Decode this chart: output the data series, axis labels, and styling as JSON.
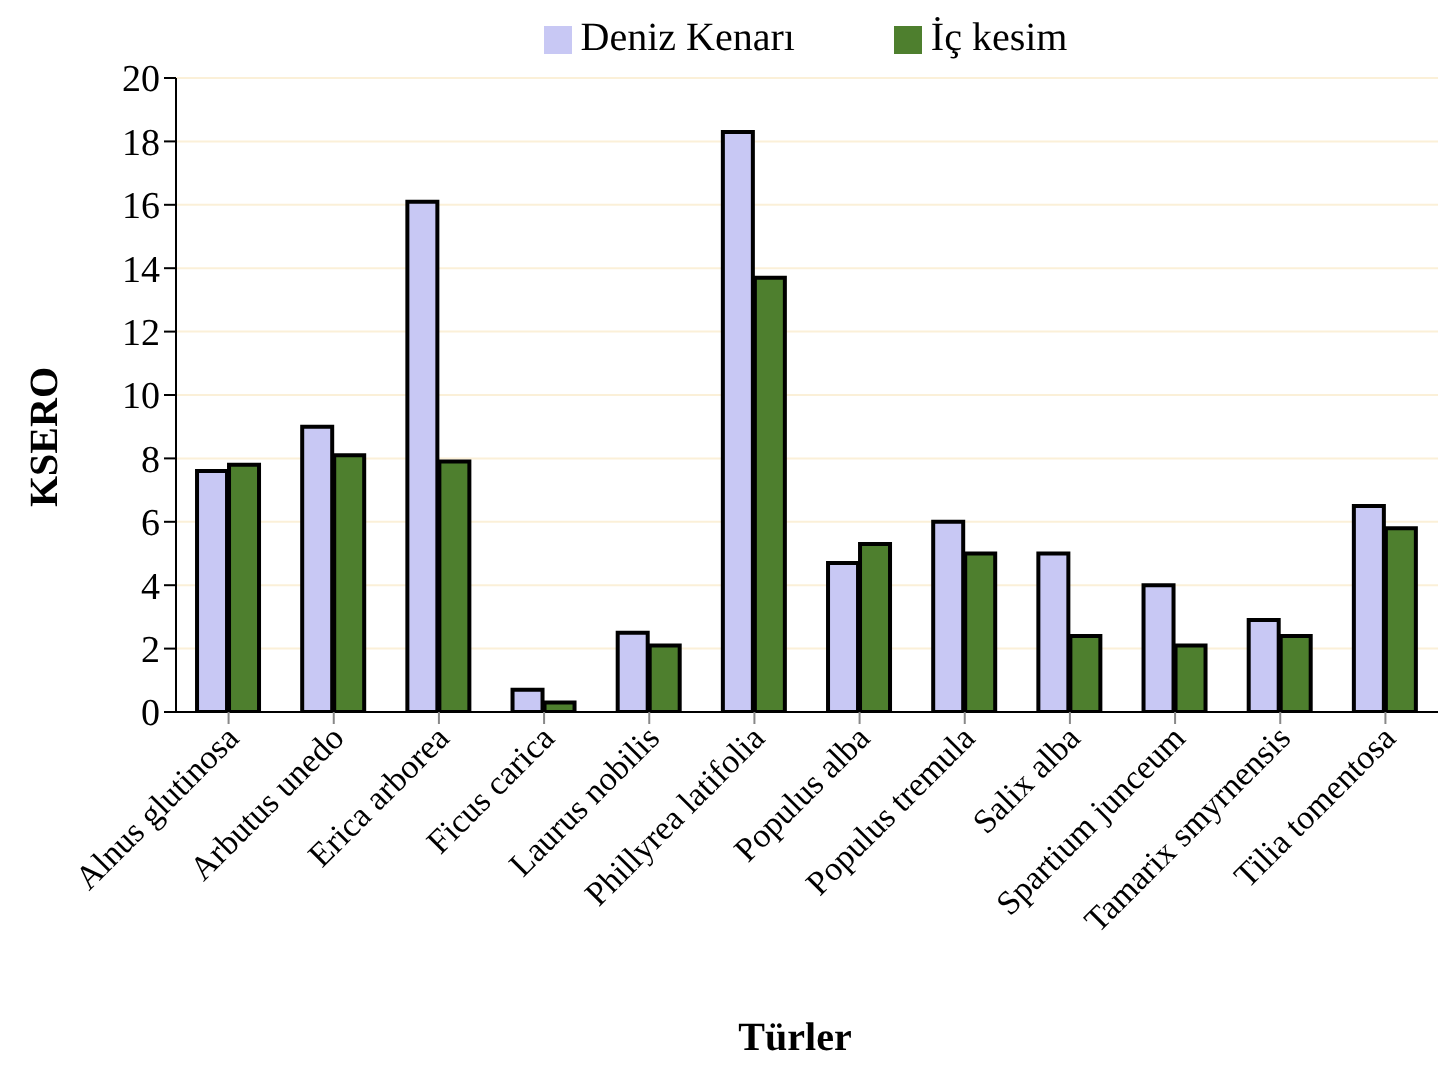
{
  "chart_data": {
    "type": "bar",
    "xlabel": "Türler",
    "ylabel": "KSERO",
    "categories": [
      "Alnus glutinosa",
      "Arbutus unedo",
      "Erica arborea",
      "Ficus carica",
      "Laurus nobilis",
      "Phillyrea latifolia",
      "Populus alba",
      "Populus tremula",
      "Salix alba",
      "Spartium junceum",
      "Tamarix smyrnensis",
      "Tilia tomentosa"
    ],
    "series": [
      {
        "name": "Deniz Kenarı",
        "color": "#c8c8f4",
        "values": [
          7.6,
          9.0,
          16.1,
          0.7,
          2.5,
          18.3,
          4.7,
          6.0,
          5.0,
          4.0,
          2.9,
          6.5
        ]
      },
      {
        "name": "İç kesim",
        "color": "#4e7f2e",
        "values": [
          7.8,
          8.1,
          7.9,
          0.3,
          2.1,
          13.7,
          5.3,
          5.0,
          2.4,
          2.1,
          2.4,
          5.8
        ]
      }
    ],
    "ylim": [
      0,
      20
    ],
    "yticks": [
      0,
      2,
      4,
      6,
      8,
      10,
      12,
      14,
      16,
      18,
      20
    ],
    "grid": "y",
    "legend": "top"
  }
}
